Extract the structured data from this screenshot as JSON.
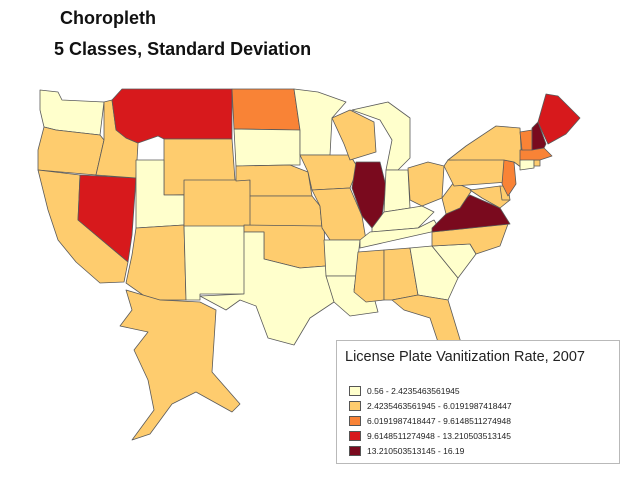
{
  "title": "Choropleth",
  "subtitle": "5 Classes, Standard Deviation",
  "classes": [
    {
      "label": "0.56 - 2.4235463561945",
      "color": "#ffffcc"
    },
    {
      "label": "2.4235463561945 - 6.0191987418447",
      "color": "#fecc6e"
    },
    {
      "label": "6.0191987418447 - 9.6148511274948",
      "color": "#f98336"
    },
    {
      "label": "9.6148511274948 - 13.210503513145",
      "color": "#d7191c"
    },
    {
      "label": "13.210503513145 - 16.19",
      "color": "#7a0a1e"
    }
  ],
  "legend": {
    "title": "License Plate Vanitization Rate, 2007"
  },
  "states": {
    "WA": 0,
    "OR": 1,
    "CA": 1,
    "NV": 3,
    "ID": 1,
    "MT": 3,
    "WY": 1,
    "UT": 0,
    "AZ": 1,
    "NM": 0,
    "CO": 1,
    "ND": 2,
    "SD": 0,
    "NE": 1,
    "KS": 1,
    "OK": 1,
    "TX": 0,
    "MN": 0,
    "IA": 1,
    "MO": 1,
    "AR": 0,
    "LA": 0,
    "WI": 1,
    "IL": 4,
    "MI": 0,
    "IN": 0,
    "OH": 1,
    "KY": 0,
    "TN": 0,
    "MS": 1,
    "AL": 1,
    "GA": 0,
    "FL": 1,
    "SC": 0,
    "NC": 1,
    "VA": 4,
    "WV": 1,
    "MD": 1,
    "DE": 1,
    "PA": 1,
    "NJ": 2,
    "NY": 1,
    "CT": 0,
    "RI": 1,
    "MA": 2,
    "VT": 2,
    "NH": 4,
    "ME": 3,
    "AK": 1
  }
}
